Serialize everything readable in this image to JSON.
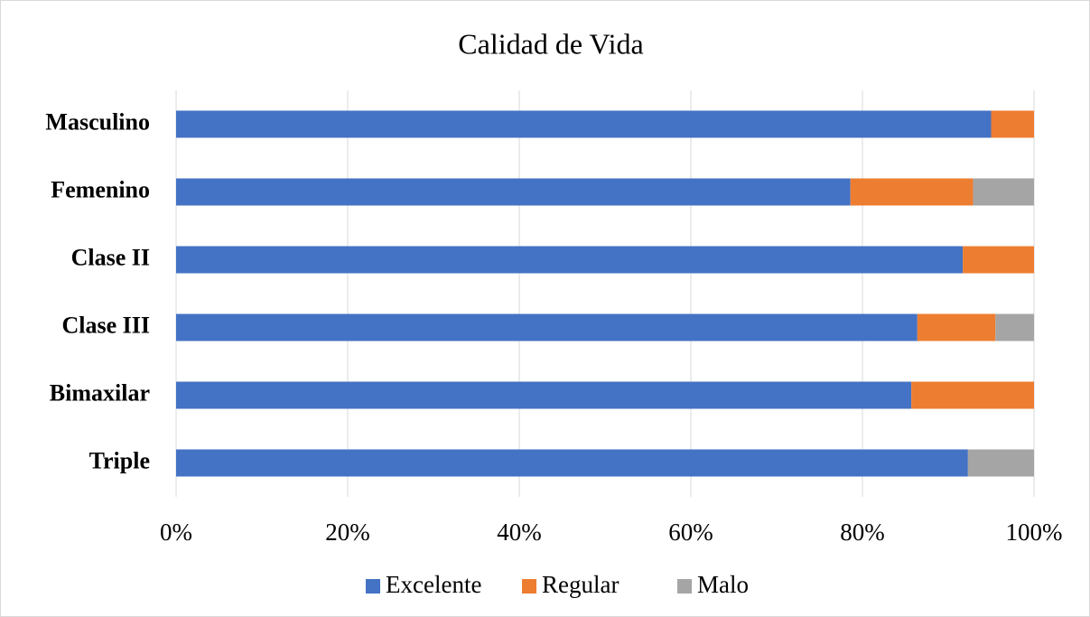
{
  "chart_data": {
    "type": "stacked_barh",
    "title": "Calidad de Vida",
    "categories": [
      "Masculino",
      "Femenino",
      "Clase II",
      "Clase III",
      "Bimaxilar",
      "Triple"
    ],
    "series": [
      {
        "name": "Excelente",
        "color": "#4472c4",
        "values": [
          95,
          78.6,
          91.7,
          86.4,
          85.7,
          92.3
        ]
      },
      {
        "name": "Regular",
        "color": "#ed7d31",
        "values": [
          5,
          14.3,
          8.3,
          9.1,
          14.3,
          0
        ]
      },
      {
        "name": "Malo",
        "color": "#a5a5a5",
        "values": [
          0,
          7.1,
          0,
          4.5,
          0,
          7.7
        ]
      }
    ],
    "xlim": [
      0,
      100
    ],
    "xticks": [
      {
        "value": 0,
        "label": "0%"
      },
      {
        "value": 20,
        "label": "20%"
      },
      {
        "value": 40,
        "label": "40%"
      },
      {
        "value": 60,
        "label": "60%"
      },
      {
        "value": 80,
        "label": "80%"
      },
      {
        "value": 100,
        "label": "100%"
      }
    ],
    "grid": true,
    "legend": "bottom"
  }
}
